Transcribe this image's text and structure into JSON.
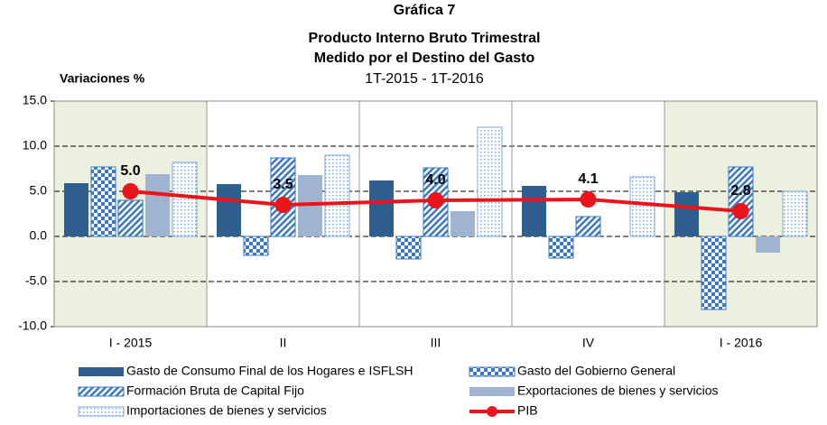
{
  "chart_data": {
    "type": "bar",
    "title": "Gráfica 7",
    "title_lines": [
      "Producto Interno Bruto Trimestral",
      "Medido por el Destino del Gasto"
    ],
    "subtitle": "1T-2015 - 1T-2016",
    "y_label": "Variaciones %",
    "categories": [
      "I - 2015",
      "II",
      "III",
      "IV",
      "I - 2016"
    ],
    "series": [
      {
        "name": "Gasto de Consumo Final de los Hogares e ISFLSH",
        "color": "#2f5f8e",
        "pattern": "solid",
        "values": [
          5.9,
          5.8,
          6.2,
          5.6,
          4.9
        ]
      },
      {
        "name": "Gasto del Gobierno General",
        "color": "#3a78c2",
        "pattern": "checker",
        "values": [
          7.7,
          -2.1,
          -2.5,
          -2.4,
          -8.1
        ]
      },
      {
        "name": "Formación Bruta de Capital Fijo",
        "color": "#3a78c2",
        "pattern": "diagonal",
        "values": [
          4.0,
          8.7,
          7.6,
          2.2,
          7.7
        ]
      },
      {
        "name": "Exportaciones de bienes y servicios",
        "color": "#9fb4d0",
        "pattern": "solid",
        "values": [
          6.9,
          6.8,
          2.8,
          0.0,
          -1.8
        ]
      },
      {
        "name": "Importaciones de bienes y servicios",
        "color": "#7fa6d6",
        "pattern": "dots",
        "values": [
          8.2,
          9.0,
          12.1,
          6.6,
          5.0
        ]
      },
      {
        "name": "PIB",
        "color": "#e8161b",
        "type": "line",
        "values": [
          5.0,
          3.5,
          4.0,
          4.1,
          2.8
        ],
        "value_labels": [
          "5.0",
          "3.5",
          "4.0",
          "4.1",
          "2.8"
        ]
      }
    ],
    "ylim": [
      -10,
      15
    ],
    "yticks": [
      {
        "value": -10,
        "label": "-10.0"
      },
      {
        "value": -5,
        "label": "-5.0"
      },
      {
        "value": 0,
        "label": "0.0"
      },
      {
        "value": 5,
        "label": "5.0"
      },
      {
        "value": 10,
        "label": "10.0"
      },
      {
        "value": 15,
        "label": "15.0"
      }
    ],
    "grid": true
  }
}
